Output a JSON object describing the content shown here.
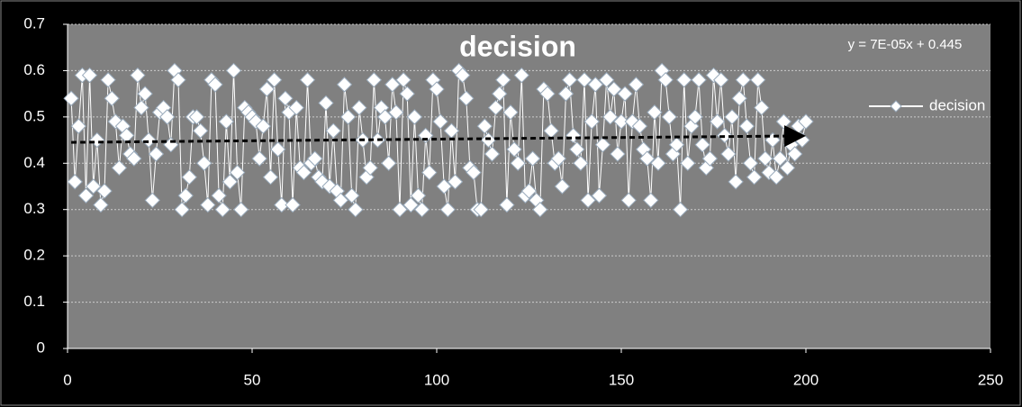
{
  "chart_data": {
    "type": "line",
    "title": "decision",
    "x": [
      1,
      2,
      3,
      4,
      5,
      6,
      7,
      8,
      9,
      10,
      11,
      12,
      13,
      14,
      15,
      16,
      17,
      18,
      19,
      20,
      21,
      22,
      23,
      24,
      25,
      26,
      27,
      28,
      29,
      30,
      31,
      32,
      33,
      34,
      35,
      36,
      37,
      38,
      39,
      40,
      41,
      42,
      43,
      44,
      45,
      46,
      47,
      48,
      49,
      50,
      51,
      52,
      53,
      54,
      55,
      56,
      57,
      58,
      59,
      60,
      61,
      62,
      63,
      64,
      65,
      66,
      67,
      68,
      69,
      70,
      71,
      72,
      73,
      74,
      75,
      76,
      77,
      78,
      79,
      80,
      81,
      82,
      83,
      84,
      85,
      86,
      87,
      88,
      89,
      90,
      91,
      92,
      93,
      94,
      95,
      96,
      97,
      98,
      99,
      100,
      101,
      102,
      103,
      104,
      105,
      106,
      107,
      108,
      109,
      110,
      111,
      112,
      113,
      114,
      115,
      116,
      117,
      118,
      119,
      120,
      121,
      122,
      123,
      124,
      125,
      126,
      127,
      128,
      129,
      130,
      131,
      132,
      133,
      134,
      135,
      136,
      137,
      138,
      139,
      140,
      141,
      142,
      143,
      144,
      145,
      146,
      147,
      148,
      149,
      150,
      151,
      152,
      153,
      154,
      155,
      156,
      157,
      158,
      159,
      160,
      161,
      162,
      163,
      164,
      165,
      166,
      167,
      168,
      169,
      170,
      171,
      172,
      173,
      174,
      175,
      176,
      177,
      178,
      179,
      180,
      181,
      182,
      183,
      184,
      185,
      186,
      187,
      188,
      189,
      190,
      191,
      192,
      193,
      194,
      195,
      196,
      197,
      198,
      199,
      200
    ],
    "series": [
      {
        "name": "decision",
        "color": "#ffffff",
        "values": [
          0.54,
          0.36,
          0.48,
          0.59,
          0.33,
          0.59,
          0.35,
          0.45,
          0.31,
          0.34,
          0.58,
          0.54,
          0.49,
          0.39,
          0.48,
          0.46,
          0.42,
          0.41,
          0.59,
          0.52,
          0.55,
          0.45,
          0.32,
          0.42,
          0.51,
          0.52,
          0.5,
          0.44,
          0.6,
          0.58,
          0.3,
          0.33,
          0.37,
          0.5,
          0.5,
          0.47,
          0.4,
          0.31,
          0.58,
          0.57,
          0.33,
          0.3,
          0.49,
          0.36,
          0.6,
          0.38,
          0.3,
          0.52,
          0.51,
          0.5,
          0.49,
          0.41,
          0.48,
          0.56,
          0.37,
          0.58,
          0.43,
          0.31,
          0.54,
          0.51,
          0.31,
          0.52,
          0.39,
          0.38,
          0.58,
          0.4,
          0.41,
          0.37,
          0.36,
          0.53,
          0.35,
          0.47,
          0.34,
          0.32,
          0.57,
          0.5,
          0.33,
          0.3,
          0.52,
          0.45,
          0.37,
          0.39,
          0.58,
          0.45,
          0.52,
          0.5,
          0.4,
          0.57,
          0.51,
          0.3,
          0.58,
          0.55,
          0.31,
          0.5,
          0.33,
          0.3,
          0.46,
          0.38,
          0.58,
          0.56,
          0.49,
          0.35,
          0.3,
          0.47,
          0.36,
          0.6,
          0.59,
          0.54,
          0.39,
          0.38,
          0.3,
          0.3,
          0.48,
          0.45,
          0.42,
          0.52,
          0.55,
          0.58,
          0.31,
          0.51,
          0.43,
          0.4,
          0.59,
          0.33,
          0.34,
          0.41,
          0.32,
          0.3,
          0.56,
          0.55,
          0.47,
          0.4,
          0.41,
          0.35,
          0.55,
          0.58,
          0.46,
          0.43,
          0.4,
          0.58,
          0.32,
          0.49,
          0.57,
          0.33,
          0.44,
          0.58,
          0.5,
          0.56,
          0.42,
          0.49,
          0.55,
          0.32,
          0.49,
          0.57,
          0.48,
          0.43,
          0.41,
          0.32,
          0.51,
          0.4,
          0.6,
          0.58,
          0.5,
          0.42,
          0.44,
          0.3,
          0.58,
          0.4,
          0.48,
          0.5,
          0.58,
          0.44,
          0.39,
          0.41,
          0.59,
          0.49,
          0.58,
          0.46,
          0.42,
          0.5,
          0.36,
          0.54,
          0.58,
          0.48,
          0.4,
          0.37,
          0.58,
          0.52,
          0.41,
          0.38,
          0.45,
          0.37,
          0.41,
          0.49,
          0.39,
          0.44,
          0.42,
          0.48,
          0.45,
          0.49
        ]
      }
    ],
    "trendline": {
      "label": "y = 7E-05x + 0.445",
      "slope": 7e-05,
      "intercept": 0.445,
      "color": "#000000"
    },
    "xlim": [
      0,
      250
    ],
    "xticks": [
      0,
      50,
      100,
      150,
      200,
      250
    ],
    "ylim": [
      0,
      0.7
    ],
    "yticks": [
      0,
      0.1,
      0.2,
      0.3,
      0.4,
      0.5,
      0.6,
      0.7
    ],
    "grid": true,
    "legend": "right"
  }
}
